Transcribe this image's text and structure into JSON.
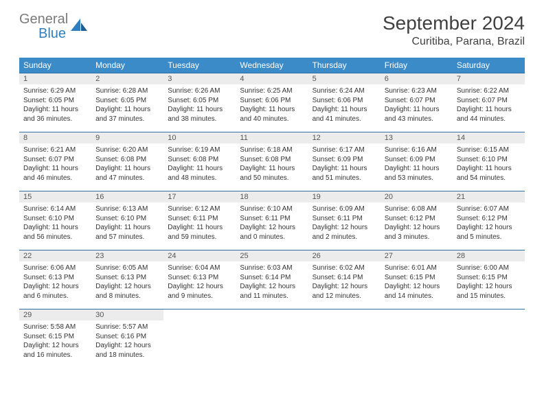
{
  "brand": {
    "word1": "General",
    "word2": "Blue"
  },
  "title": "September 2024",
  "location": "Curitiba, Parana, Brazil",
  "colors": {
    "header_bg": "#3b8bc9",
    "header_text": "#ffffff",
    "day_num_bg": "#ececec",
    "row_border": "#2f6fa3",
    "body_text": "#333333",
    "title_text": "#404040",
    "logo_gray": "#7a7a7a",
    "logo_blue": "#2f7fbf",
    "page_bg": "#ffffff"
  },
  "typography": {
    "month_title_fontsize": 28,
    "location_fontsize": 16,
    "weekday_fontsize": 12,
    "daynum_fontsize": 11,
    "body_fontsize": 10,
    "logo_fontsize": 20
  },
  "layout": {
    "columns": 7,
    "rows": 5,
    "first_weekday": "Sunday",
    "first_day_column": 0
  },
  "weekdays": [
    "Sunday",
    "Monday",
    "Tuesday",
    "Wednesday",
    "Thursday",
    "Friday",
    "Saturday"
  ],
  "days": [
    {
      "n": 1,
      "sunrise": "6:29 AM",
      "sunset": "6:05 PM",
      "daylight": "11 hours and 36 minutes."
    },
    {
      "n": 2,
      "sunrise": "6:28 AM",
      "sunset": "6:05 PM",
      "daylight": "11 hours and 37 minutes."
    },
    {
      "n": 3,
      "sunrise": "6:26 AM",
      "sunset": "6:05 PM",
      "daylight": "11 hours and 38 minutes."
    },
    {
      "n": 4,
      "sunrise": "6:25 AM",
      "sunset": "6:06 PM",
      "daylight": "11 hours and 40 minutes."
    },
    {
      "n": 5,
      "sunrise": "6:24 AM",
      "sunset": "6:06 PM",
      "daylight": "11 hours and 41 minutes."
    },
    {
      "n": 6,
      "sunrise": "6:23 AM",
      "sunset": "6:07 PM",
      "daylight": "11 hours and 43 minutes."
    },
    {
      "n": 7,
      "sunrise": "6:22 AM",
      "sunset": "6:07 PM",
      "daylight": "11 hours and 44 minutes."
    },
    {
      "n": 8,
      "sunrise": "6:21 AM",
      "sunset": "6:07 PM",
      "daylight": "11 hours and 46 minutes."
    },
    {
      "n": 9,
      "sunrise": "6:20 AM",
      "sunset": "6:08 PM",
      "daylight": "11 hours and 47 minutes."
    },
    {
      "n": 10,
      "sunrise": "6:19 AM",
      "sunset": "6:08 PM",
      "daylight": "11 hours and 48 minutes."
    },
    {
      "n": 11,
      "sunrise": "6:18 AM",
      "sunset": "6:08 PM",
      "daylight": "11 hours and 50 minutes."
    },
    {
      "n": 12,
      "sunrise": "6:17 AM",
      "sunset": "6:09 PM",
      "daylight": "11 hours and 51 minutes."
    },
    {
      "n": 13,
      "sunrise": "6:16 AM",
      "sunset": "6:09 PM",
      "daylight": "11 hours and 53 minutes."
    },
    {
      "n": 14,
      "sunrise": "6:15 AM",
      "sunset": "6:10 PM",
      "daylight": "11 hours and 54 minutes."
    },
    {
      "n": 15,
      "sunrise": "6:14 AM",
      "sunset": "6:10 PM",
      "daylight": "11 hours and 56 minutes."
    },
    {
      "n": 16,
      "sunrise": "6:13 AM",
      "sunset": "6:10 PM",
      "daylight": "11 hours and 57 minutes."
    },
    {
      "n": 17,
      "sunrise": "6:12 AM",
      "sunset": "6:11 PM",
      "daylight": "11 hours and 59 minutes."
    },
    {
      "n": 18,
      "sunrise": "6:10 AM",
      "sunset": "6:11 PM",
      "daylight": "12 hours and 0 minutes."
    },
    {
      "n": 19,
      "sunrise": "6:09 AM",
      "sunset": "6:11 PM",
      "daylight": "12 hours and 2 minutes."
    },
    {
      "n": 20,
      "sunrise": "6:08 AM",
      "sunset": "6:12 PM",
      "daylight": "12 hours and 3 minutes."
    },
    {
      "n": 21,
      "sunrise": "6:07 AM",
      "sunset": "6:12 PM",
      "daylight": "12 hours and 5 minutes."
    },
    {
      "n": 22,
      "sunrise": "6:06 AM",
      "sunset": "6:13 PM",
      "daylight": "12 hours and 6 minutes."
    },
    {
      "n": 23,
      "sunrise": "6:05 AM",
      "sunset": "6:13 PM",
      "daylight": "12 hours and 8 minutes."
    },
    {
      "n": 24,
      "sunrise": "6:04 AM",
      "sunset": "6:13 PM",
      "daylight": "12 hours and 9 minutes."
    },
    {
      "n": 25,
      "sunrise": "6:03 AM",
      "sunset": "6:14 PM",
      "daylight": "12 hours and 11 minutes."
    },
    {
      "n": 26,
      "sunrise": "6:02 AM",
      "sunset": "6:14 PM",
      "daylight": "12 hours and 12 minutes."
    },
    {
      "n": 27,
      "sunrise": "6:01 AM",
      "sunset": "6:15 PM",
      "daylight": "12 hours and 14 minutes."
    },
    {
      "n": 28,
      "sunrise": "6:00 AM",
      "sunset": "6:15 PM",
      "daylight": "12 hours and 15 minutes."
    },
    {
      "n": 29,
      "sunrise": "5:58 AM",
      "sunset": "6:15 PM",
      "daylight": "12 hours and 16 minutes."
    },
    {
      "n": 30,
      "sunrise": "5:57 AM",
      "sunset": "6:16 PM",
      "daylight": "12 hours and 18 minutes."
    }
  ],
  "labels": {
    "sunrise": "Sunrise:",
    "sunset": "Sunset:",
    "daylight": "Daylight:"
  }
}
